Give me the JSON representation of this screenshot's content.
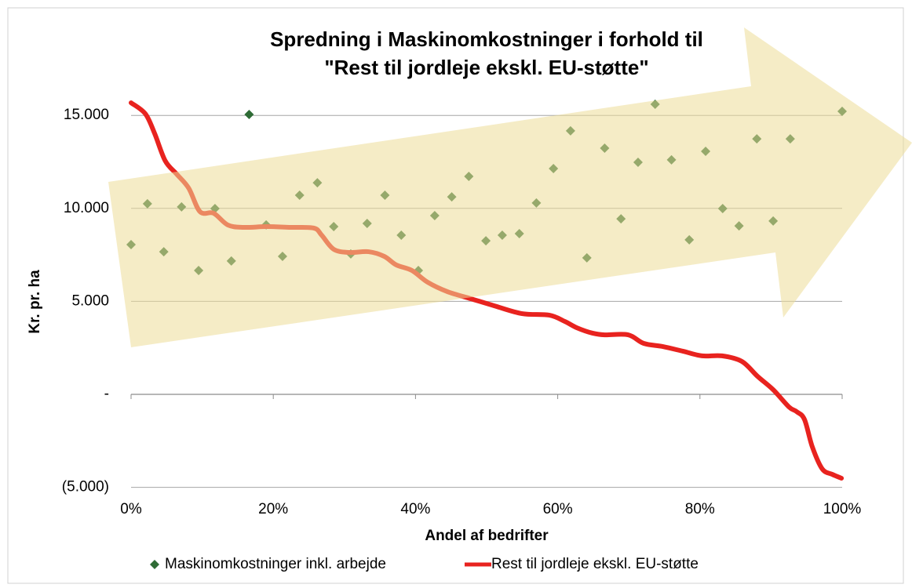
{
  "chart_data": {
    "type": "scatter",
    "title": [
      "Spredning i Maskinomkostninger i forhold til",
      "\"Rest til jordleje ekskl. EU-støtte\""
    ],
    "x_label": "Andel af bedrifter",
    "y_label": "Kr. pr. ha",
    "xlim": [
      0,
      1
    ],
    "xticks": [
      {
        "value": 0,
        "label": "0%"
      },
      {
        "value": 0.2,
        "label": "20%"
      },
      {
        "value": 0.4,
        "label": "40%"
      },
      {
        "value": 0.6,
        "label": "60%"
      },
      {
        "value": 0.8,
        "label": "80%"
      },
      {
        "value": 1,
        "label": "100%"
      }
    ],
    "ylim": [
      -5000,
      20000
    ],
    "yticks": [
      {
        "value": -5000,
        "label": "(5.000)"
      },
      {
        "value": 0,
        "label": "-"
      },
      {
        "value": 5000,
        "label": "5.000"
      },
      {
        "value": 10000,
        "label": "10.000"
      },
      {
        "value": 15000,
        "label": "15.000"
      }
    ],
    "grid": true,
    "legend": "bottom",
    "series": [
      {
        "name": "Maskinomkostninger inkl. arbejde",
        "type": "scatter",
        "color": "#2e6b35",
        "x": [
          0,
          0.023,
          0.046,
          0.071,
          0.095,
          0.118,
          0.141,
          0.166,
          0.19,
          0.213,
          0.237,
          0.262,
          0.285,
          0.309,
          0.332,
          0.357,
          0.38,
          0.404,
          0.427,
          0.451,
          0.475,
          0.499,
          0.522,
          0.546,
          0.57,
          0.594,
          0.618,
          0.641,
          0.666,
          0.689,
          0.713,
          0.737,
          0.76,
          0.785,
          0.808,
          0.832,
          0.855,
          0.88,
          0.903,
          0.927,
          1.0
        ],
        "values": [
          8050,
          10250,
          7670,
          10080,
          6660,
          9990,
          7170,
          15050,
          9110,
          7420,
          10710,
          11380,
          9020,
          7550,
          9190,
          10710,
          8560,
          6660,
          9610,
          10620,
          11720,
          8260,
          8560,
          8640,
          10290,
          12140,
          14170,
          7340,
          13240,
          9440,
          12480,
          15600,
          12610,
          8310,
          13070,
          9990,
          9060,
          13740,
          9320,
          13740,
          15220
        ]
      },
      {
        "name": "Rest til jordleje ekskl. EU-støtte",
        "type": "line",
        "color": "#e8231f",
        "x": [
          0,
          0.02,
          0.033,
          0.048,
          0.064,
          0.081,
          0.097,
          0.116,
          0.136,
          0.158,
          0.191,
          0.224,
          0.257,
          0.268,
          0.285,
          0.307,
          0.334,
          0.356,
          0.373,
          0.395,
          0.417,
          0.445,
          0.478,
          0.511,
          0.55,
          0.588,
          0.61,
          0.627,
          0.649,
          0.666,
          0.699,
          0.721,
          0.748,
          0.776,
          0.803,
          0.831,
          0.859,
          0.881,
          0.903,
          0.925,
          0.936,
          0.947,
          0.958,
          0.972,
          0.986,
          0.999
        ],
        "values": [
          15680,
          15090,
          14040,
          12560,
          11850,
          11090,
          9820,
          9740,
          9110,
          8980,
          9020,
          8980,
          8940,
          8560,
          7800,
          7630,
          7670,
          7420,
          6960,
          6660,
          6030,
          5520,
          5140,
          4760,
          4340,
          4260,
          3920,
          3580,
          3290,
          3200,
          3200,
          2740,
          2570,
          2320,
          2070,
          2070,
          1770,
          970,
          250,
          -670,
          -930,
          -1350,
          -2820,
          -4010,
          -4300,
          -4510
        ]
      }
    ]
  }
}
